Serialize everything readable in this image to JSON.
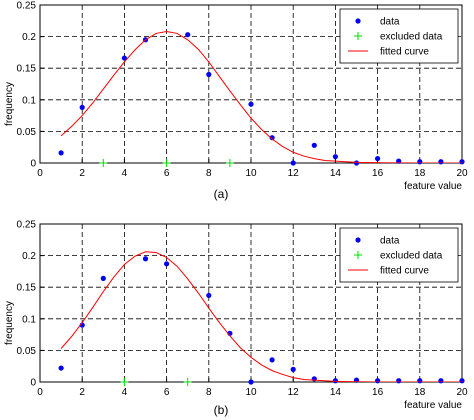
{
  "chart_data": [
    {
      "type": "scatter",
      "panel_label": "(a)",
      "xlabel": "feature value",
      "ylabel": "frequency",
      "xlim": [
        0,
        20
      ],
      "ylim": [
        0,
        0.25
      ],
      "xticks": [
        0,
        2,
        4,
        6,
        8,
        10,
        12,
        14,
        16,
        18,
        20
      ],
      "yticks": [
        0,
        0.05,
        0.1,
        0.15,
        0.2,
        0.25
      ],
      "grid": true,
      "legend_position": "top-right",
      "series": [
        {
          "name": "data",
          "kind": "points",
          "color": "#0000ff",
          "x": [
            1,
            2,
            4,
            5,
            7,
            8,
            10,
            11,
            12,
            13,
            14,
            15,
            16,
            17,
            18,
            19,
            20
          ],
          "y": [
            0.016,
            0.088,
            0.166,
            0.195,
            0.203,
            0.14,
            0.093,
            0.04,
            0.0,
            0.028,
            0.01,
            0.0,
            0.007,
            0.003,
            0.002,
            0.002,
            0.002
          ]
        },
        {
          "name": "excluded data",
          "kind": "plus",
          "color": "#00dd00",
          "x": [
            3,
            6,
            9
          ],
          "y": [
            0.0,
            0.0,
            0.0
          ]
        },
        {
          "name": "fitted curve",
          "kind": "line",
          "color": "#ff0000",
          "x": [
            1,
            1.5,
            2,
            2.5,
            3,
            3.5,
            4,
            4.5,
            5,
            5.5,
            6,
            6.5,
            7,
            7.5,
            8,
            8.5,
            9,
            9.5,
            10,
            10.5,
            11,
            11.5,
            12,
            12.5,
            13,
            13.5,
            14,
            15,
            16,
            17,
            18,
            19,
            20
          ],
          "y": [
            0.043,
            0.058,
            0.075,
            0.095,
            0.117,
            0.139,
            0.16,
            0.179,
            0.195,
            0.205,
            0.208,
            0.205,
            0.195,
            0.18,
            0.16,
            0.137,
            0.114,
            0.092,
            0.071,
            0.053,
            0.038,
            0.026,
            0.017,
            0.011,
            0.007,
            0.004,
            0.003,
            0.001,
            0.0005,
            0.0002,
            0.0001,
            0.0,
            0.0
          ]
        }
      ]
    },
    {
      "type": "scatter",
      "panel_label": "(b)",
      "xlabel": "feature value",
      "ylabel": "frequency",
      "xlim": [
        0,
        20
      ],
      "ylim": [
        0,
        0.25
      ],
      "xticks": [
        0,
        2,
        4,
        6,
        8,
        10,
        12,
        14,
        16,
        18,
        20
      ],
      "yticks": [
        0,
        0.05,
        0.1,
        0.15,
        0.2,
        0.25
      ],
      "grid": true,
      "legend_position": "top-right",
      "series": [
        {
          "name": "data",
          "kind": "points",
          "color": "#0000ff",
          "x": [
            1,
            2,
            3,
            5,
            6,
            8,
            9,
            10,
            11,
            12,
            13,
            14,
            15,
            16,
            17,
            18,
            19,
            20
          ],
          "y": [
            0.022,
            0.09,
            0.164,
            0.195,
            0.187,
            0.137,
            0.077,
            0.0,
            0.035,
            0.02,
            0.005,
            0.002,
            0.003,
            0.002,
            0.002,
            0.002,
            0.002,
            0.002
          ]
        },
        {
          "name": "excluded data",
          "kind": "plus",
          "color": "#00dd00",
          "x": [
            4,
            7
          ],
          "y": [
            0.0,
            0.0
          ]
        },
        {
          "name": "fitted curve",
          "kind": "line",
          "color": "#ff0000",
          "x": [
            1,
            1.5,
            2,
            2.5,
            3,
            3.5,
            4,
            4.5,
            5,
            5.5,
            6,
            6.5,
            7,
            7.5,
            8,
            8.5,
            9,
            9.5,
            10,
            10.5,
            11,
            11.5,
            12,
            12.5,
            13,
            13.5,
            14,
            15,
            16,
            17,
            18,
            19,
            20
          ],
          "y": [
            0.053,
            0.072,
            0.094,
            0.118,
            0.143,
            0.166,
            0.186,
            0.199,
            0.206,
            0.205,
            0.197,
            0.183,
            0.163,
            0.141,
            0.117,
            0.094,
            0.073,
            0.054,
            0.039,
            0.027,
            0.018,
            0.012,
            0.007,
            0.004,
            0.003,
            0.002,
            0.001,
            0.0003,
            0.0001,
            0.0,
            0.0,
            0.0,
            0.0
          ]
        }
      ]
    }
  ]
}
